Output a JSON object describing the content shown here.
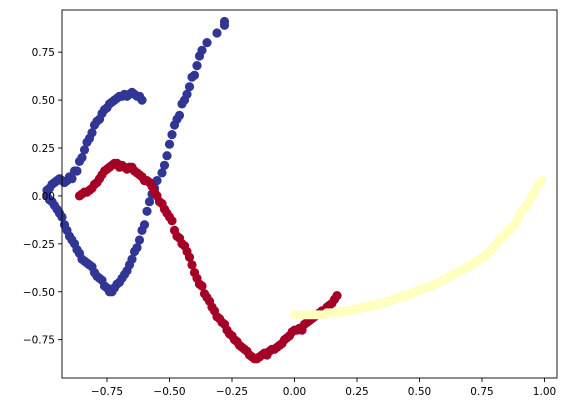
{
  "chart_data": {
    "type": "scatter",
    "title": "",
    "xlabel": "",
    "ylabel": "",
    "xlim": [
      -0.93,
      1.05
    ],
    "ylim": [
      -0.95,
      0.97
    ],
    "x_ticks": [
      -0.75,
      -0.5,
      -0.25,
      0.0,
      0.25,
      0.5,
      0.75,
      1.0
    ],
    "x_tick_labels": [
      "−0.75",
      "−0.50",
      "−0.25",
      "0.00",
      "0.25",
      "0.50",
      "0.75",
      "1.00"
    ],
    "y_ticks": [
      0.75,
      0.5,
      0.25,
      0.0,
      -0.25,
      -0.5,
      -0.75
    ],
    "y_tick_labels": [
      "0.75",
      "0.50",
      "0.25",
      "0.00",
      "−0.25",
      "−0.50",
      "−0.75"
    ],
    "grid": false,
    "legend": "none",
    "series": [
      {
        "color": "#313695",
        "points": [
          [
            -0.28,
            0.91
          ],
          [
            -0.28,
            0.89
          ],
          [
            -0.31,
            0.85
          ],
          [
            -0.35,
            0.8
          ],
          [
            -0.37,
            0.76
          ],
          [
            -0.38,
            0.73
          ],
          [
            -0.39,
            0.68
          ],
          [
            -0.4,
            0.63
          ],
          [
            -0.41,
            0.62
          ],
          [
            -0.42,
            0.57
          ],
          [
            -0.43,
            0.53
          ],
          [
            -0.44,
            0.5
          ],
          [
            -0.45,
            0.48
          ],
          [
            -0.46,
            0.42
          ],
          [
            -0.47,
            0.4
          ],
          [
            -0.48,
            0.37
          ],
          [
            -0.49,
            0.32
          ],
          [
            -0.5,
            0.27
          ],
          [
            -0.51,
            0.21
          ],
          [
            -0.52,
            0.16
          ],
          [
            -0.53,
            0.12
          ],
          [
            -0.55,
            0.08
          ],
          [
            -0.56,
            0.04
          ],
          [
            -0.57,
            0.01
          ],
          [
            -0.58,
            -0.03
          ],
          [
            -0.59,
            -0.08
          ],
          [
            -0.6,
            -0.15
          ],
          [
            -0.61,
            -0.18
          ],
          [
            -0.62,
            -0.23
          ],
          [
            -0.63,
            -0.27
          ],
          [
            -0.64,
            -0.29
          ],
          [
            -0.65,
            -0.33
          ],
          [
            -0.66,
            -0.36
          ],
          [
            -0.67,
            -0.39
          ],
          [
            -0.68,
            -0.41
          ],
          [
            -0.69,
            -0.43
          ],
          [
            -0.7,
            -0.45
          ],
          [
            -0.71,
            -0.46
          ],
          [
            -0.72,
            -0.48
          ],
          [
            -0.73,
            -0.5
          ],
          [
            -0.74,
            -0.5
          ],
          [
            -0.75,
            -0.48
          ],
          [
            -0.76,
            -0.47
          ],
          [
            -0.77,
            -0.44
          ],
          [
            -0.78,
            -0.43
          ],
          [
            -0.79,
            -0.42
          ],
          [
            -0.8,
            -0.4
          ],
          [
            -0.81,
            -0.37
          ],
          [
            -0.82,
            -0.36
          ],
          [
            -0.83,
            -0.35
          ],
          [
            -0.84,
            -0.34
          ],
          [
            -0.85,
            -0.33
          ],
          [
            -0.86,
            -0.3
          ],
          [
            -0.87,
            -0.28
          ],
          [
            -0.88,
            -0.25
          ],
          [
            -0.89,
            -0.23
          ],
          [
            -0.9,
            -0.21
          ],
          [
            -0.91,
            -0.18
          ],
          [
            -0.92,
            -0.15
          ],
          [
            -0.93,
            -0.11
          ],
          [
            -0.94,
            -0.09
          ],
          [
            -0.95,
            -0.07
          ],
          [
            -0.96,
            -0.05
          ],
          [
            -0.97,
            -0.03
          ],
          [
            -0.98,
            -0.02
          ],
          [
            -0.99,
            0.0
          ],
          [
            -0.99,
            0.03
          ],
          [
            -0.98,
            0.04
          ],
          [
            -0.97,
            0.06
          ],
          [
            -0.96,
            0.07
          ],
          [
            -0.95,
            0.08
          ],
          [
            -0.94,
            0.09
          ],
          [
            -0.93,
            0.08
          ],
          [
            -0.92,
            0.07
          ],
          [
            -0.91,
            0.08
          ],
          [
            -0.9,
            0.1
          ],
          [
            -0.89,
            0.09
          ],
          [
            -0.88,
            0.13
          ],
          [
            -0.87,
            0.13
          ],
          [
            -0.86,
            0.18
          ],
          [
            -0.85,
            0.2
          ],
          [
            -0.84,
            0.24
          ],
          [
            -0.83,
            0.28
          ],
          [
            -0.82,
            0.3
          ],
          [
            -0.81,
            0.33
          ],
          [
            -0.8,
            0.37
          ],
          [
            -0.79,
            0.39
          ],
          [
            -0.78,
            0.4
          ],
          [
            -0.77,
            0.43
          ],
          [
            -0.76,
            0.45
          ],
          [
            -0.75,
            0.46
          ],
          [
            -0.74,
            0.48
          ],
          [
            -0.73,
            0.49
          ],
          [
            -0.72,
            0.5
          ],
          [
            -0.71,
            0.51
          ],
          [
            -0.7,
            0.52
          ],
          [
            -0.69,
            0.52
          ],
          [
            -0.68,
            0.53
          ],
          [
            -0.67,
            0.52
          ],
          [
            -0.66,
            0.53
          ],
          [
            -0.65,
            0.54
          ],
          [
            -0.64,
            0.53
          ],
          [
            -0.63,
            0.52
          ],
          [
            -0.62,
            0.52
          ],
          [
            -0.61,
            0.5
          ]
        ]
      },
      {
        "color": "#a50026",
        "points": [
          [
            -0.86,
            0.0
          ],
          [
            -0.85,
            0.01
          ],
          [
            -0.84,
            0.02
          ],
          [
            -0.83,
            0.02
          ],
          [
            -0.82,
            0.03
          ],
          [
            -0.81,
            0.04
          ],
          [
            -0.8,
            0.06
          ],
          [
            -0.79,
            0.07
          ],
          [
            -0.78,
            0.09
          ],
          [
            -0.77,
            0.11
          ],
          [
            -0.76,
            0.13
          ],
          [
            -0.75,
            0.14
          ],
          [
            -0.74,
            0.15
          ],
          [
            -0.73,
            0.16
          ],
          [
            -0.72,
            0.17
          ],
          [
            -0.71,
            0.17
          ],
          [
            -0.7,
            0.15
          ],
          [
            -0.69,
            0.16
          ],
          [
            -0.68,
            0.15
          ],
          [
            -0.67,
            0.14
          ],
          [
            -0.66,
            0.15
          ],
          [
            -0.65,
            0.15
          ],
          [
            -0.64,
            0.13
          ],
          [
            -0.63,
            0.12
          ],
          [
            -0.62,
            0.11
          ],
          [
            -0.61,
            0.1
          ],
          [
            -0.6,
            0.08
          ],
          [
            -0.59,
            0.08
          ],
          [
            -0.58,
            0.07
          ],
          [
            -0.57,
            0.05
          ],
          [
            -0.56,
            0.02
          ],
          [
            -0.55,
            0.0
          ],
          [
            -0.54,
            -0.03
          ],
          [
            -0.53,
            -0.04
          ],
          [
            -0.52,
            -0.07
          ],
          [
            -0.51,
            -0.09
          ],
          [
            -0.5,
            -0.11
          ],
          [
            -0.49,
            -0.13
          ],
          [
            -0.48,
            -0.18
          ],
          [
            -0.47,
            -0.21
          ],
          [
            -0.46,
            -0.22
          ],
          [
            -0.45,
            -0.25
          ],
          [
            -0.44,
            -0.26
          ],
          [
            -0.43,
            -0.29
          ],
          [
            -0.42,
            -0.32
          ],
          [
            -0.41,
            -0.36
          ],
          [
            -0.4,
            -0.4
          ],
          [
            -0.39,
            -0.43
          ],
          [
            -0.38,
            -0.46
          ],
          [
            -0.37,
            -0.47
          ],
          [
            -0.36,
            -0.51
          ],
          [
            -0.35,
            -0.53
          ],
          [
            -0.34,
            -0.55
          ],
          [
            -0.33,
            -0.58
          ],
          [
            -0.32,
            -0.6
          ],
          [
            -0.31,
            -0.63
          ],
          [
            -0.3,
            -0.64
          ],
          [
            -0.29,
            -0.66
          ],
          [
            -0.28,
            -0.67
          ],
          [
            -0.27,
            -0.7
          ],
          [
            -0.26,
            -0.72
          ],
          [
            -0.25,
            -0.73
          ],
          [
            -0.24,
            -0.75
          ],
          [
            -0.23,
            -0.76
          ],
          [
            -0.22,
            -0.78
          ],
          [
            -0.21,
            -0.79
          ],
          [
            -0.2,
            -0.8
          ],
          [
            -0.19,
            -0.81
          ],
          [
            -0.18,
            -0.83
          ],
          [
            -0.17,
            -0.84
          ],
          [
            -0.16,
            -0.85
          ],
          [
            -0.15,
            -0.85
          ],
          [
            -0.14,
            -0.84
          ],
          [
            -0.13,
            -0.83
          ],
          [
            -0.12,
            -0.82
          ],
          [
            -0.11,
            -0.83
          ],
          [
            -0.1,
            -0.81
          ],
          [
            -0.09,
            -0.8
          ],
          [
            -0.08,
            -0.8
          ],
          [
            -0.07,
            -0.79
          ],
          [
            -0.06,
            -0.78
          ],
          [
            -0.05,
            -0.77
          ],
          [
            -0.04,
            -0.75
          ],
          [
            -0.03,
            -0.74
          ],
          [
            -0.02,
            -0.73
          ],
          [
            -0.01,
            -0.71
          ],
          [
            0.0,
            -0.7
          ],
          [
            0.01,
            -0.7
          ],
          [
            0.02,
            -0.69
          ],
          [
            0.03,
            -0.7
          ],
          [
            0.04,
            -0.67
          ],
          [
            0.05,
            -0.66
          ],
          [
            0.06,
            -0.65
          ],
          [
            0.07,
            -0.64
          ],
          [
            0.08,
            -0.63
          ],
          [
            0.09,
            -0.62
          ],
          [
            0.1,
            -0.61
          ],
          [
            0.11,
            -0.6
          ],
          [
            0.12,
            -0.6
          ],
          [
            0.13,
            -0.58
          ],
          [
            0.14,
            -0.57
          ],
          [
            0.15,
            -0.56
          ],
          [
            0.16,
            -0.54
          ],
          [
            0.17,
            -0.52
          ]
        ]
      },
      {
        "color": "#ffffbf",
        "points": [
          [
            0.99,
            0.08
          ],
          [
            0.98,
            0.07
          ],
          [
            0.97,
            0.05
          ],
          [
            0.96,
            0.02
          ],
          [
            0.95,
            0.0
          ],
          [
            0.94,
            -0.03
          ],
          [
            0.93,
            -0.05
          ],
          [
            0.92,
            -0.07
          ],
          [
            0.91,
            -0.08
          ],
          [
            0.9,
            -0.1
          ],
          [
            0.89,
            -0.13
          ],
          [
            0.88,
            -0.15
          ],
          [
            0.87,
            -0.16
          ],
          [
            0.86,
            -0.18
          ],
          [
            0.85,
            -0.18
          ],
          [
            0.84,
            -0.21
          ],
          [
            0.83,
            -0.22
          ],
          [
            0.82,
            -0.23
          ],
          [
            0.81,
            -0.25
          ],
          [
            0.8,
            -0.26
          ],
          [
            0.79,
            -0.28
          ],
          [
            0.78,
            -0.29
          ],
          [
            0.77,
            -0.3
          ],
          [
            0.76,
            -0.32
          ],
          [
            0.75,
            -0.32
          ],
          [
            0.74,
            -0.33
          ],
          [
            0.73,
            -0.34
          ],
          [
            0.72,
            -0.35
          ],
          [
            0.71,
            -0.36
          ],
          [
            0.7,
            -0.37
          ],
          [
            0.69,
            -0.37
          ],
          [
            0.68,
            -0.38
          ],
          [
            0.67,
            -0.39
          ],
          [
            0.66,
            -0.39
          ],
          [
            0.65,
            -0.4
          ],
          [
            0.64,
            -0.41
          ],
          [
            0.63,
            -0.41
          ],
          [
            0.62,
            -0.42
          ],
          [
            0.61,
            -0.43
          ],
          [
            0.6,
            -0.44
          ],
          [
            0.59,
            -0.44
          ],
          [
            0.58,
            -0.45
          ],
          [
            0.57,
            -0.46
          ],
          [
            0.56,
            -0.46
          ],
          [
            0.55,
            -0.47
          ],
          [
            0.54,
            -0.47
          ],
          [
            0.53,
            -0.48
          ],
          [
            0.52,
            -0.48
          ],
          [
            0.51,
            -0.49
          ],
          [
            0.5,
            -0.49
          ],
          [
            0.49,
            -0.5
          ],
          [
            0.48,
            -0.5
          ],
          [
            0.47,
            -0.51
          ],
          [
            0.46,
            -0.51
          ],
          [
            0.45,
            -0.52
          ],
          [
            0.44,
            -0.52
          ],
          [
            0.43,
            -0.52
          ],
          [
            0.42,
            -0.53
          ],
          [
            0.41,
            -0.53
          ],
          [
            0.4,
            -0.54
          ],
          [
            0.39,
            -0.54
          ],
          [
            0.38,
            -0.55
          ],
          [
            0.37,
            -0.55
          ],
          [
            0.36,
            -0.56
          ],
          [
            0.35,
            -0.56
          ],
          [
            0.34,
            -0.56
          ],
          [
            0.33,
            -0.57
          ],
          [
            0.32,
            -0.57
          ],
          [
            0.31,
            -0.57
          ],
          [
            0.3,
            -0.58
          ],
          [
            0.29,
            -0.58
          ],
          [
            0.28,
            -0.58
          ],
          [
            0.27,
            -0.58
          ],
          [
            0.26,
            -0.59
          ],
          [
            0.25,
            -0.59
          ],
          [
            0.24,
            -0.59
          ],
          [
            0.23,
            -0.6
          ],
          [
            0.22,
            -0.6
          ],
          [
            0.21,
            -0.6
          ],
          [
            0.2,
            -0.6
          ],
          [
            0.19,
            -0.6
          ],
          [
            0.18,
            -0.61
          ],
          [
            0.17,
            -0.61
          ],
          [
            0.16,
            -0.61
          ],
          [
            0.15,
            -0.61
          ],
          [
            0.14,
            -0.61
          ],
          [
            0.13,
            -0.61
          ],
          [
            0.12,
            -0.62
          ],
          [
            0.11,
            -0.62
          ],
          [
            0.1,
            -0.62
          ],
          [
            0.09,
            -0.62
          ],
          [
            0.08,
            -0.62
          ],
          [
            0.07,
            -0.62
          ],
          [
            0.06,
            -0.62
          ],
          [
            0.05,
            -0.62
          ],
          [
            0.04,
            -0.62
          ],
          [
            0.03,
            -0.62
          ],
          [
            0.02,
            -0.62
          ],
          [
            0.01,
            -0.62
          ],
          [
            0.0,
            -0.62
          ]
        ]
      }
    ]
  }
}
